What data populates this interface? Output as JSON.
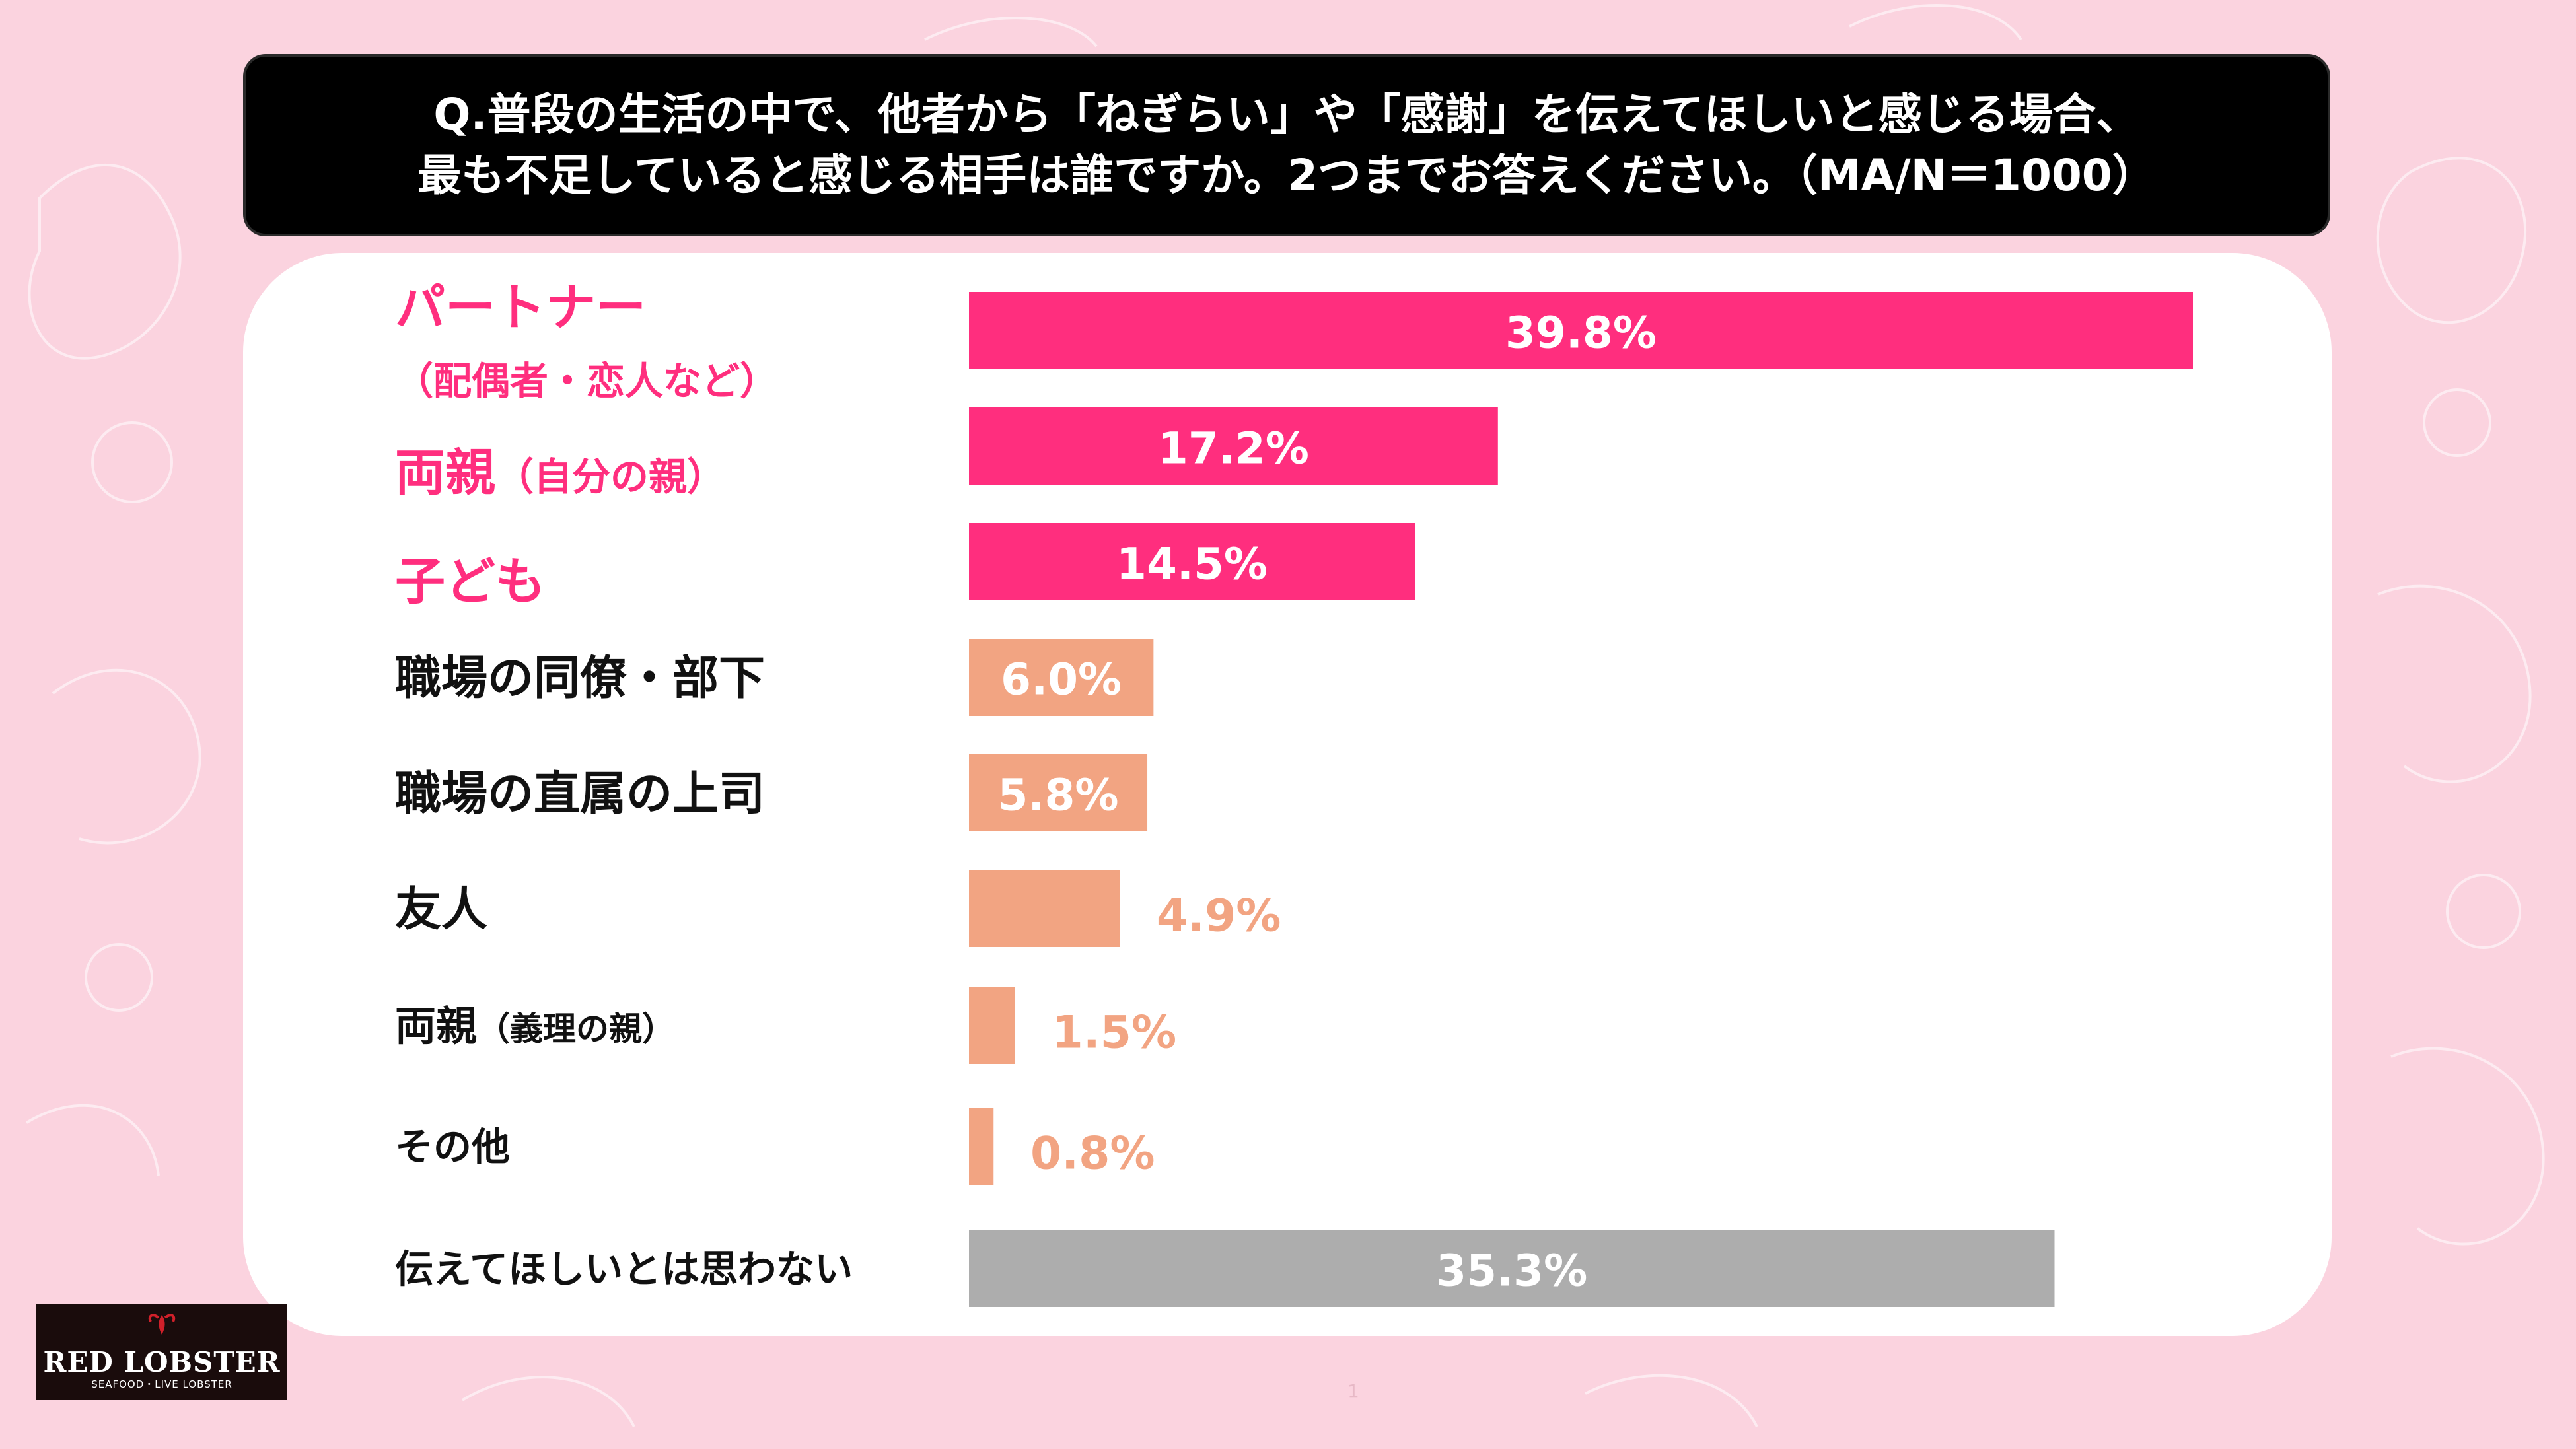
{
  "title": {
    "line1": "Q.普段の生活の中で、他者から「ねぎらい」や「感謝」を伝えてほしいと感じる場合、",
    "line2": "最も不足していると感じる相手は誰ですか。2つまでお答えください。（MA/N＝1000）"
  },
  "colors": {
    "pink": "#ff2e7e",
    "pink_text": "#ff2e7e",
    "peach": "#f2a482",
    "gray": "#adadad",
    "dark_text": "#111111"
  },
  "chart_data": {
    "type": "bar",
    "orientation": "horizontal",
    "xlim": [
      0,
      40
    ],
    "grid": false,
    "legend": "none",
    "categories": [
      {
        "label": "パートナー",
        "sub": "（配偶者・恋人など）",
        "value": 39.8,
        "value_label": "39.8%",
        "color": "pink"
      },
      {
        "label": "両親",
        "sub": "（自分の親）",
        "value": 17.2,
        "value_label": "17.2%",
        "color": "pink"
      },
      {
        "label": "子ども",
        "sub": "",
        "value": 14.5,
        "value_label": "14.5%",
        "color": "pink"
      },
      {
        "label": "職場の同僚・部下",
        "sub": "",
        "value": 6.0,
        "value_label": "6.0%",
        "color": "peach"
      },
      {
        "label": "職場の直属の上司",
        "sub": "",
        "value": 5.8,
        "value_label": "5.8%",
        "color": "peach"
      },
      {
        "label": "友人",
        "sub": "",
        "value": 4.9,
        "value_label": "4.9%",
        "color": "peach"
      },
      {
        "label": "両親",
        "sub": "（義理の親）",
        "value": 1.5,
        "value_label": "1.5%",
        "color": "peach"
      },
      {
        "label": "その他",
        "sub": "",
        "value": 0.8,
        "value_label": "0.8%",
        "color": "peach"
      },
      {
        "label": "伝えてほしいとは思わない",
        "sub": "",
        "value": 35.3,
        "value_label": "35.3%",
        "color": "gray"
      }
    ]
  },
  "logo": {
    "main": "RED LOBSTER",
    "sub": "SEAFOOD・LIVE LOBSTER"
  },
  "page_number": "1"
}
